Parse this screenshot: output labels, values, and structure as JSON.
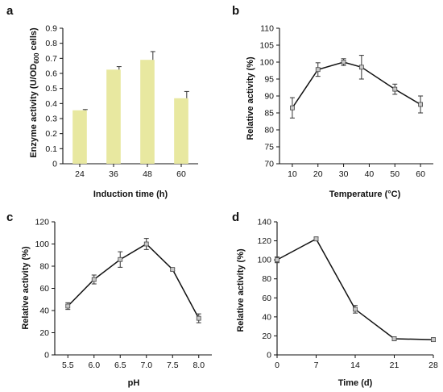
{
  "chart_data": [
    {
      "panel": "a",
      "type": "bar",
      "categories": [
        "24",
        "36",
        "48",
        "60"
      ],
      "values": [
        0.355,
        0.625,
        0.69,
        0.435
      ],
      "errors": [
        0.005,
        0.02,
        0.055,
        0.045
      ],
      "ylim": [
        0,
        0.9
      ],
      "yticks": [
        "0",
        "0.1",
        "0.2",
        "0.3",
        "0.4",
        "0.5",
        "0.6",
        "0.7",
        "0.8",
        "0.9"
      ],
      "xlabel": "Induction time (h)",
      "ylabel": "Enzyme activity (U/OD600 cells)",
      "ylabel_main": "Enzyme activity (U/OD",
      "ylabel_sub": "600",
      "ylabel_tail": " cells)",
      "bar_color": "#e8e8a0"
    },
    {
      "panel": "b",
      "type": "line",
      "x": [
        10,
        20,
        30,
        37,
        50,
        60
      ],
      "y": [
        86.5,
        97.8,
        100,
        98.5,
        92,
        87.5
      ],
      "errors": [
        3,
        2,
        1,
        3.5,
        1.5,
        2.5
      ],
      "xlim": [
        5,
        65
      ],
      "xticks": [
        "10",
        "20",
        "30",
        "40",
        "50",
        "60"
      ],
      "ylim": [
        70,
        110
      ],
      "yticks": [
        "70",
        "75",
        "80",
        "85",
        "90",
        "95",
        "100",
        "105",
        "110"
      ],
      "xlabel": "Temperature (°C)",
      "ylabel": "Relative activity (%)"
    },
    {
      "panel": "c",
      "type": "line",
      "x": [
        5.5,
        6.0,
        6.5,
        7.0,
        7.5,
        8.0
      ],
      "y": [
        44,
        68,
        86,
        100,
        77,
        33
      ],
      "errors": [
        3,
        4,
        7,
        5,
        1,
        4
      ],
      "xlim": [
        5.25,
        8.25
      ],
      "xticks": [
        "5.5",
        "6.0",
        "6.5",
        "7.0",
        "7.5",
        "8.0"
      ],
      "ylim": [
        0,
        120
      ],
      "yticks": [
        "0",
        "20",
        "40",
        "60",
        "80",
        "100",
        "120"
      ],
      "xlabel": "pH",
      "ylabel": "Relative activity (%)"
    },
    {
      "panel": "d",
      "type": "line",
      "x": [
        0,
        7,
        14,
        21,
        28
      ],
      "y": [
        100,
        122,
        48,
        17,
        16
      ],
      "errors": [
        3,
        2,
        4,
        2,
        2
      ],
      "xlim": [
        0,
        28
      ],
      "xticks": [
        "0",
        "7",
        "14",
        "21",
        "28"
      ],
      "ylim": [
        0,
        140
      ],
      "yticks": [
        "0",
        "20",
        "40",
        "60",
        "80",
        "100",
        "120",
        "140"
      ],
      "xlabel": "Time (d)",
      "ylabel": "Relative activity (%)"
    }
  ]
}
